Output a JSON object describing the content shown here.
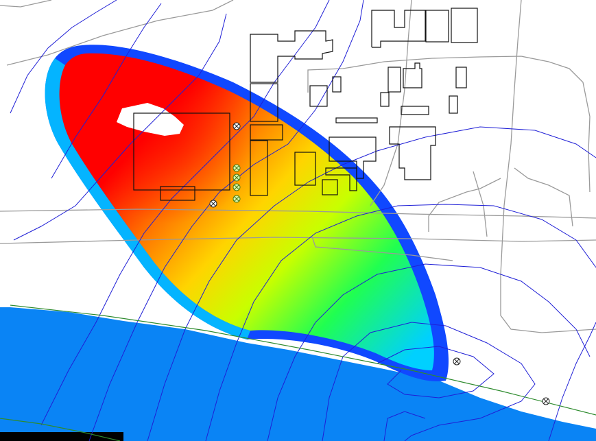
{
  "map": {
    "colors": {
      "water": "#0a84f5",
      "background": "#ffffff",
      "road": "#9a9a9a",
      "contour": "#1f1fd6",
      "building": "#111111",
      "shoreline": "#2e8b2e",
      "plume_max": "#ff0000",
      "plume_mid": "#ffff00",
      "plume_low": "#00ff60",
      "plume_edge": "#0060ff"
    },
    "layers": [
      "concentration-plume",
      "water-body",
      "roads",
      "buildings",
      "head-contours",
      "monitoring-wells",
      "shoreline"
    ],
    "icons": [
      "monitoring-well-icon"
    ]
  }
}
